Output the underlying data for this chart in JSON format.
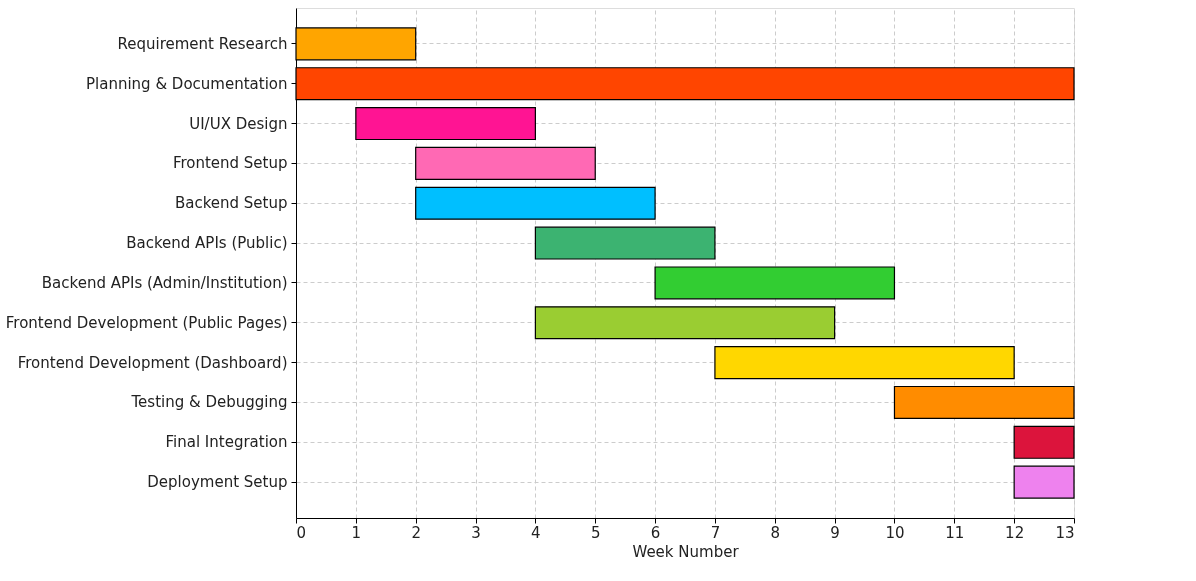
{
  "chart_data": {
    "type": "bar",
    "orientation": "horizontal",
    "xlabel": "Week Number",
    "categories": [
      "Requirement Research",
      "Planning & Documentation",
      "UI/UX Design",
      "Frontend Setup",
      "Backend Setup",
      "Backend APIs (Public)",
      "Backend APIs (Admin/Institution)",
      "Frontend Development (Public Pages)",
      "Frontend Development (Dashboard)",
      "Testing & Debugging",
      "Final Integration",
      "Deployment Setup"
    ],
    "base": [
      0,
      0,
      1,
      2,
      2,
      4,
      6,
      4,
      7,
      10,
      12,
      12
    ],
    "values": [
      2,
      13,
      3,
      3,
      4,
      3,
      4,
      5,
      5,
      3,
      1,
      1
    ],
    "colors": [
      "#ffa500",
      "#ff4500",
      "#ff1493",
      "#ff69b4",
      "#00bfff",
      "#3cb371",
      "#32cd32",
      "#9acd32",
      "#ffd700",
      "#ff8c00",
      "#dc143c",
      "#ee82ee"
    ],
    "xlim": [
      0,
      13
    ],
    "xticks": [
      0,
      1,
      2,
      3,
      4,
      5,
      6,
      7,
      8,
      9,
      10,
      11,
      12,
      13
    ],
    "grid": true
  }
}
